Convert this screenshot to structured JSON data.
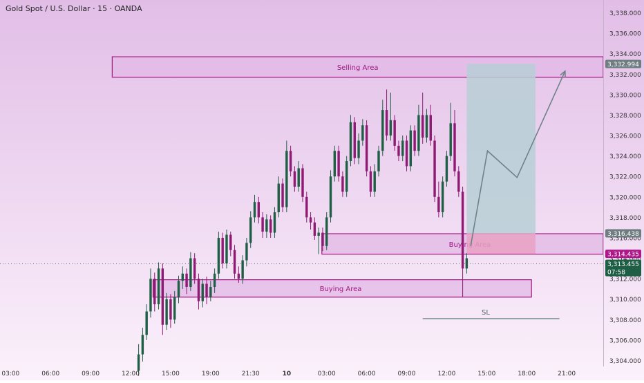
{
  "header": {
    "symbol_title": "Gold Spot / U.S. Dollar · 15 · OANDA"
  },
  "colors": {
    "background_top": "#E2BEE7",
    "background_bottom": "#FBF1FB",
    "candle_up": "#1E5E45",
    "candle_down": "#8E1A73",
    "wick": "#2A2A2A",
    "zone_fill": "#E2B8E6",
    "zone_border": "#A0157F",
    "target_box": "#B7CFD6",
    "stop_box": "#E7A2C2",
    "projection_line": "#6D8388",
    "sl_line": "#7E9396",
    "tag_gray": "#6E7E80",
    "tag_magenta": "#B0168A",
    "tag_green": "#1E5E45"
  },
  "chart_data": {
    "type": "candlestick",
    "title": "Gold Spot / U.S. Dollar · 15 · OANDA",
    "ylim": [
      3303.3,
      3339.0
    ],
    "y_ticks": [
      3304,
      3306,
      3308,
      3310,
      3312,
      3314,
      3316,
      3318,
      3320,
      3322,
      3324,
      3326,
      3328,
      3330,
      3332,
      3334,
      3336,
      3338
    ],
    "y_tick_labels": [
      "3,304.000",
      "3,306.000",
      "3,308.000",
      "3,310.000",
      "3,312.000",
      "3,314.000",
      "3,316.000",
      "3,318.000",
      "3,320.000",
      "3,322.000",
      "3,324.000",
      "3,326.000",
      "3,328.000",
      "3,330.000",
      "3,332.000",
      "3,334.000",
      "3,336.000",
      "3,338.000"
    ],
    "x_ticks": [
      {
        "label": "03:00",
        "i": -32
      },
      {
        "label": "06:00",
        "i": -22
      },
      {
        "label": "09:00",
        "i": -12
      },
      {
        "label": "12:00",
        "i": -2
      },
      {
        "label": "15:00",
        "i": 8
      },
      {
        "label": "19:00",
        "i": 18
      },
      {
        "label": "21:30",
        "i": 28
      },
      {
        "label": "10",
        "i": 37
      },
      {
        "label": "03:00",
        "i": 47
      },
      {
        "label": "06:00",
        "i": 57
      },
      {
        "label": "09:00",
        "i": 67
      },
      {
        "label": "12:00",
        "i": 77
      },
      {
        "label": "15:00",
        "i": 87
      },
      {
        "label": "18:00",
        "i": 97
      },
      {
        "label": "21:00",
        "i": 107
      }
    ],
    "candles": [
      [
        3303.0,
        3304.6,
        3302.5,
        3305.6
      ],
      [
        3304.6,
        3306.5,
        3303.9,
        3307.2
      ],
      [
        3306.5,
        3308.8,
        3306.0,
        3309.5
      ],
      [
        3308.8,
        3312.0,
        3308.2,
        3313.0
      ],
      [
        3312.0,
        3309.5,
        3308.8,
        3312.6
      ],
      [
        3309.5,
        3313.0,
        3309.0,
        3313.6
      ],
      [
        3313.0,
        3307.5,
        3306.5,
        3313.5
      ],
      [
        3307.5,
        3310.0,
        3307.0,
        3310.6
      ],
      [
        3310.0,
        3308.0,
        3307.2,
        3310.5
      ],
      [
        3308.0,
        3310.2,
        3307.6,
        3310.8
      ],
      [
        3310.2,
        3311.8,
        3309.6,
        3312.3
      ],
      [
        3311.8,
        3312.5,
        3311.0,
        3313.2
      ],
      [
        3312.5,
        3311.2,
        3310.5,
        3313.0
      ],
      [
        3311.2,
        3314.0,
        3310.8,
        3314.6
      ],
      [
        3314.0,
        3312.0,
        3311.5,
        3314.5
      ],
      [
        3312.0,
        3309.8,
        3309.0,
        3312.5
      ],
      [
        3309.8,
        3311.5,
        3309.2,
        3312.0
      ],
      [
        3311.5,
        3310.2,
        3309.5,
        3312.2
      ],
      [
        3310.2,
        3311.2,
        3309.8,
        3311.8
      ],
      [
        3311.2,
        3312.5,
        3310.6,
        3313.0
      ],
      [
        3312.5,
        3316.0,
        3312.0,
        3316.6
      ],
      [
        3316.0,
        3313.5,
        3313.0,
        3316.5
      ],
      [
        3313.5,
        3316.3,
        3313.0,
        3316.8
      ],
      [
        3316.3,
        3314.8,
        3314.2,
        3316.6
      ],
      [
        3314.8,
        3312.5,
        3312.0,
        3315.3
      ],
      [
        3312.5,
        3312.0,
        3311.6,
        3313.2
      ],
      [
        3312.0,
        3313.8,
        3311.5,
        3314.3
      ],
      [
        3313.8,
        3315.5,
        3313.2,
        3316.0
      ],
      [
        3315.5,
        3318.0,
        3315.0,
        3318.6
      ],
      [
        3318.0,
        3319.5,
        3317.5,
        3320.2
      ],
      [
        3319.5,
        3318.0,
        3317.4,
        3320.0
      ],
      [
        3318.0,
        3316.6,
        3316.0,
        3318.5
      ],
      [
        3316.6,
        3317.8,
        3316.0,
        3318.3
      ],
      [
        3317.8,
        3316.5,
        3316.0,
        3318.2
      ],
      [
        3316.5,
        3318.5,
        3316.0,
        3319.0
      ],
      [
        3318.5,
        3321.3,
        3318.0,
        3322.0
      ],
      [
        3321.3,
        3319.0,
        3318.5,
        3321.8
      ],
      [
        3319.0,
        3324.5,
        3318.5,
        3325.5
      ],
      [
        3324.5,
        3322.5,
        3322.0,
        3325.0
      ],
      [
        3322.5,
        3321.0,
        3320.5,
        3323.0
      ],
      [
        3321.0,
        3322.8,
        3320.5,
        3323.5
      ],
      [
        3322.8,
        3320.0,
        3319.5,
        3323.2
      ],
      [
        3320.0,
        3318.0,
        3317.5,
        3320.5
      ],
      [
        3318.0,
        3317.5,
        3316.8,
        3318.5
      ],
      [
        3317.5,
        3316.2,
        3315.8,
        3318.0
      ],
      [
        3316.2,
        3316.5,
        3314.4,
        3317.0
      ],
      [
        3316.5,
        3315.2,
        3314.7,
        3317.0
      ],
      [
        3315.2,
        3318.0,
        3314.8,
        3318.5
      ],
      [
        3318.0,
        3322.0,
        3317.5,
        3322.6
      ],
      [
        3322.0,
        3324.5,
        3321.5,
        3325.0
      ],
      [
        3324.5,
        3322.0,
        3321.5,
        3325.0
      ],
      [
        3322.0,
        3320.5,
        3320.0,
        3322.5
      ],
      [
        3320.5,
        3323.5,
        3320.0,
        3324.0
      ],
      [
        3323.5,
        3327.3,
        3323.0,
        3328.0
      ],
      [
        3327.3,
        3323.8,
        3323.2,
        3327.8
      ],
      [
        3323.8,
        3325.5,
        3323.2,
        3326.2
      ],
      [
        3325.5,
        3327.0,
        3325.0,
        3327.6
      ],
      [
        3327.0,
        3322.5,
        3322.0,
        3327.5
      ],
      [
        3322.5,
        3320.5,
        3320.0,
        3323.0
      ],
      [
        3320.5,
        3322.5,
        3320.0,
        3323.2
      ],
      [
        3322.5,
        3324.5,
        3322.0,
        3325.0
      ],
      [
        3324.5,
        3328.5,
        3324.0,
        3329.5
      ],
      [
        3328.5,
        3326.0,
        3325.5,
        3330.5
      ],
      [
        3326.0,
        3327.5,
        3325.5,
        3330.2
      ],
      [
        3327.5,
        3325.0,
        3324.5,
        3328.0
      ],
      [
        3325.0,
        3324.0,
        3323.5,
        3325.5
      ],
      [
        3324.0,
        3325.5,
        3323.5,
        3326.0
      ],
      [
        3325.5,
        3323.0,
        3322.5,
        3326.0
      ],
      [
        3323.0,
        3326.5,
        3322.5,
        3327.0
      ],
      [
        3326.5,
        3324.5,
        3324.0,
        3327.0
      ],
      [
        3324.5,
        3328.0,
        3324.0,
        3329.0
      ],
      [
        3328.0,
        3325.8,
        3325.2,
        3330.2
      ],
      [
        3325.8,
        3328.0,
        3325.3,
        3328.6
      ],
      [
        3328.0,
        3325.5,
        3325.0,
        3329.0
      ],
      [
        3325.5,
        3320.0,
        3319.5,
        3326.0
      ],
      [
        3320.0,
        3318.5,
        3318.0,
        3321.5
      ],
      [
        3318.5,
        3321.5,
        3318.0,
        3322.0
      ],
      [
        3321.5,
        3324.0,
        3321.0,
        3324.5
      ],
      [
        3324.0,
        3327.2,
        3323.5,
        3329.2
      ],
      [
        3327.2,
        3322.5,
        3322.0,
        3328.5
      ],
      [
        3322.5,
        3320.5,
        3320.0,
        3323.0
      ],
      [
        3320.5,
        3313.0,
        3310.2,
        3321.0
      ],
      [
        3313.0,
        3314.0,
        3312.5,
        3314.5
      ]
    ],
    "zones": [
      {
        "label": "Selling Area",
        "x1": -6.6,
        "x2": 134.2,
        "y_top": 3333.7,
        "y_bottom": 3331.7
      },
      {
        "label": "Buying Area",
        "x1": 45.8,
        "x2": 134.2,
        "y_top": 3316.4,
        "y_bottom": 3314.4
      },
      {
        "label": "",
        "x1": -1.6,
        "x2": 98.2,
        "y_top": 3311.9,
        "y_bottom": 3310.2
      },
      {
        "label": "Buying Area",
        "x1": 3.6,
        "x2": 98.2,
        "y_top": 3311.9,
        "y_bottom": 3310.2
      }
    ],
    "position": {
      "x1": 82.0,
      "x2": 99.2,
      "entry": 3316.438,
      "target": 3332.994,
      "stop": 3314.435
    },
    "projection": [
      [
        83.0,
        3315.2
      ],
      [
        87.2,
        3324.5
      ],
      [
        94.6,
        3321.9
      ],
      [
        106.6,
        3332.3
      ]
    ],
    "sl_line": {
      "label": "SL",
      "x1": 71.0,
      "x2": 105.2,
      "y": 3308.1
    },
    "price_tags": [
      {
        "label": "3,332.994",
        "y": 3332.994,
        "color": "tag_gray"
      },
      {
        "label": "3,316.438",
        "y": 3316.438,
        "color": "tag_gray"
      },
      {
        "label": "3,314.435",
        "y": 3314.435,
        "color": "tag_magenta"
      },
      {
        "label": "3,313.455",
        "sub": "07:58",
        "y": 3313.455,
        "color": "tag_green"
      }
    ],
    "last_price": 3313.455
  }
}
